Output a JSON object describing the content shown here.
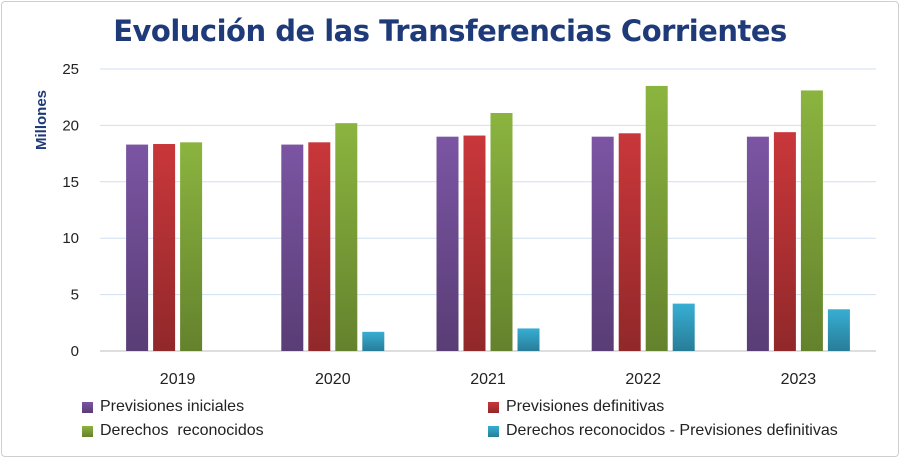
{
  "chart_data": {
    "type": "bar",
    "title": "Evolución de las Transferencias Corrientes",
    "xlabel": "",
    "ylabel": "Millones",
    "ylim": [
      0,
      25
    ],
    "yticks": [
      0,
      5,
      10,
      15,
      20,
      25
    ],
    "grid": true,
    "legend_position": "bottom",
    "categories": [
      "2019",
      "2020",
      "2021",
      "2022",
      "2023"
    ],
    "series": [
      {
        "name": "Previsiones iniciales",
        "color": "#7b55a3",
        "values": [
          18.3,
          18.3,
          19.0,
          19.0,
          19.0
        ]
      },
      {
        "name": "Previsiones definitivas",
        "color": "#c9373a",
        "values": [
          18.35,
          18.5,
          19.1,
          19.3,
          19.4
        ]
      },
      {
        "name": "Derechos  reconocidos",
        "color": "#8bb43f",
        "values": [
          18.5,
          20.2,
          21.1,
          23.5,
          23.1
        ]
      },
      {
        "name": "Derechos reconocidos - Previsiones definitivas",
        "color": "#37aed3",
        "values": [
          0,
          1.7,
          2.0,
          4.2,
          3.7
        ]
      }
    ]
  }
}
